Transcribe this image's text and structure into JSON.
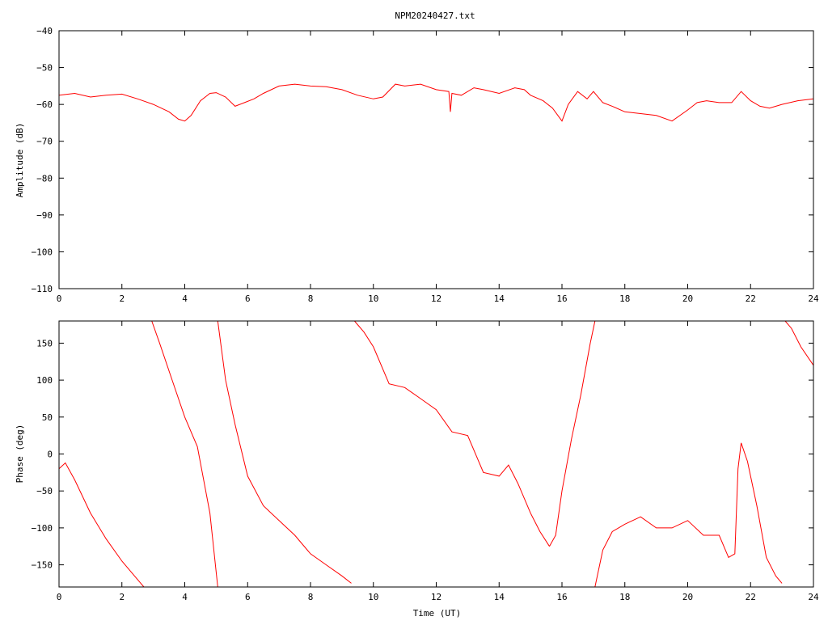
{
  "page": {
    "title": "NPM20240427.txt"
  },
  "chart_data": [
    {
      "type": "line",
      "title": "NPM20240427.txt",
      "xlabel": "",
      "ylabel": "Amplitude (dB)",
      "xlim": [
        0,
        24
      ],
      "ylim": [
        -110,
        -40
      ],
      "x_ticks": [
        0,
        2,
        4,
        6,
        8,
        10,
        12,
        14,
        16,
        18,
        20,
        22,
        24
      ],
      "y_ticks": [
        -110,
        -100,
        -90,
        -80,
        -70,
        -60,
        -50,
        -40
      ],
      "grid": false,
      "legend": "none",
      "series_color": "#ff0000",
      "series": [
        {
          "x": [
            0,
            0.5,
            1,
            1.5,
            2,
            2.5,
            3,
            3.5,
            3.8,
            4,
            4.2,
            4.5,
            4.8,
            5,
            5.3,
            5.6,
            5.9,
            6.2,
            6.5,
            7,
            7.5,
            8,
            8.5,
            9,
            9.5,
            10,
            10.3,
            10.7,
            11,
            11.5,
            12,
            12.4,
            12.45,
            12.5,
            12.8,
            13.2,
            13.5,
            14,
            14.5,
            14.8,
            15,
            15.4,
            15.7,
            16,
            16.2,
            16.5,
            16.8,
            17,
            17.3,
            17.6,
            18,
            18.5,
            19,
            19.5,
            20,
            20.3,
            20.6,
            21,
            21.4,
            21.7,
            22,
            22.3,
            22.6,
            23,
            23.5,
            24
          ],
          "y": [
            -57.5,
            -57,
            -58,
            -57.5,
            -57.2,
            -58.5,
            -60,
            -62,
            -64,
            -64.5,
            -63,
            -59,
            -57,
            -56.8,
            -58,
            -60.5,
            -59.5,
            -58.5,
            -57,
            -55,
            -54.5,
            -55,
            -55.2,
            -56,
            -57.5,
            -58.5,
            -58,
            -54.5,
            -55,
            -54.5,
            -56,
            -56.5,
            -62,
            -57,
            -57.5,
            -55.5,
            -56,
            -57,
            -55.5,
            -56,
            -57.5,
            -59,
            -61,
            -64.5,
            -60,
            -56.5,
            -58.5,
            -56.5,
            -59.5,
            -60.5,
            -62,
            -62.5,
            -63,
            -64.5,
            -61.5,
            -59.5,
            -59,
            -59.5,
            -59.5,
            -56.5,
            -59,
            -60.5,
            -61,
            -60,
            -59,
            -58.5
          ]
        }
      ]
    },
    {
      "type": "line",
      "title": "",
      "xlabel": "Time (UT)",
      "ylabel": "Phase (deg)",
      "xlim": [
        0,
        24
      ],
      "ylim": [
        -180,
        180
      ],
      "x_ticks": [
        0,
        2,
        4,
        6,
        8,
        10,
        12,
        14,
        16,
        18,
        20,
        22,
        24
      ],
      "y_ticks": [
        -150,
        -100,
        -50,
        0,
        50,
        100,
        150
      ],
      "grid": false,
      "legend": "none",
      "series_color": "#ff0000",
      "series": [
        {
          "x": [
            0,
            0.2,
            0.5,
            1,
            1.5,
            2,
            2.3,
            2.6,
            2.7
          ],
          "y": [
            -20,
            -12,
            -35,
            -80,
            -115,
            -145,
            -160,
            -175,
            -180
          ]
        },
        {
          "x": [
            2.95,
            3.2,
            3.6,
            4,
            4.4,
            4.8,
            5.05
          ],
          "y": [
            180,
            150,
            100,
            50,
            10,
            -80,
            -180
          ]
        },
        {
          "x": [
            5.05,
            5.3,
            5.6,
            6,
            6.5,
            7,
            7.5,
            8,
            8.5,
            9,
            9.3
          ],
          "y": [
            180,
            100,
            40,
            -30,
            -70,
            -90,
            -110,
            -135,
            -150,
            -165,
            -175
          ]
        },
        {
          "x": [
            9.4,
            9.7,
            10,
            10.5,
            11,
            11.5,
            12,
            12.5,
            13,
            13.5,
            14,
            14.3,
            14.6,
            15,
            15.3,
            15.6
          ],
          "y": [
            180,
            165,
            145,
            95,
            90,
            75,
            60,
            30,
            25,
            -25,
            -30,
            -15,
            -40,
            -80,
            -105,
            -125
          ]
        },
        {
          "x": [
            15.6,
            15.8,
            16,
            16.3,
            16.6,
            16.9,
            17.05
          ],
          "y": [
            -125,
            -110,
            -50,
            20,
            80,
            150,
            180
          ]
        },
        {
          "x": [
            17.05,
            17.3,
            17.6,
            18,
            18.5,
            19,
            19.5,
            20,
            20.5,
            21,
            21.3,
            21.5,
            21.6,
            21.7,
            21.9,
            22.2,
            22.5,
            22.8,
            23
          ],
          "y": [
            -180,
            -130,
            -105,
            -95,
            -85,
            -100,
            -100,
            -90,
            -110,
            -110,
            -140,
            -135,
            -20,
            15,
            -10,
            -70,
            -140,
            -165,
            -175
          ]
        },
        {
          "x": [
            23.1,
            23.3,
            23.6,
            24
          ],
          "y": [
            180,
            170,
            145,
            120
          ]
        }
      ]
    }
  ]
}
